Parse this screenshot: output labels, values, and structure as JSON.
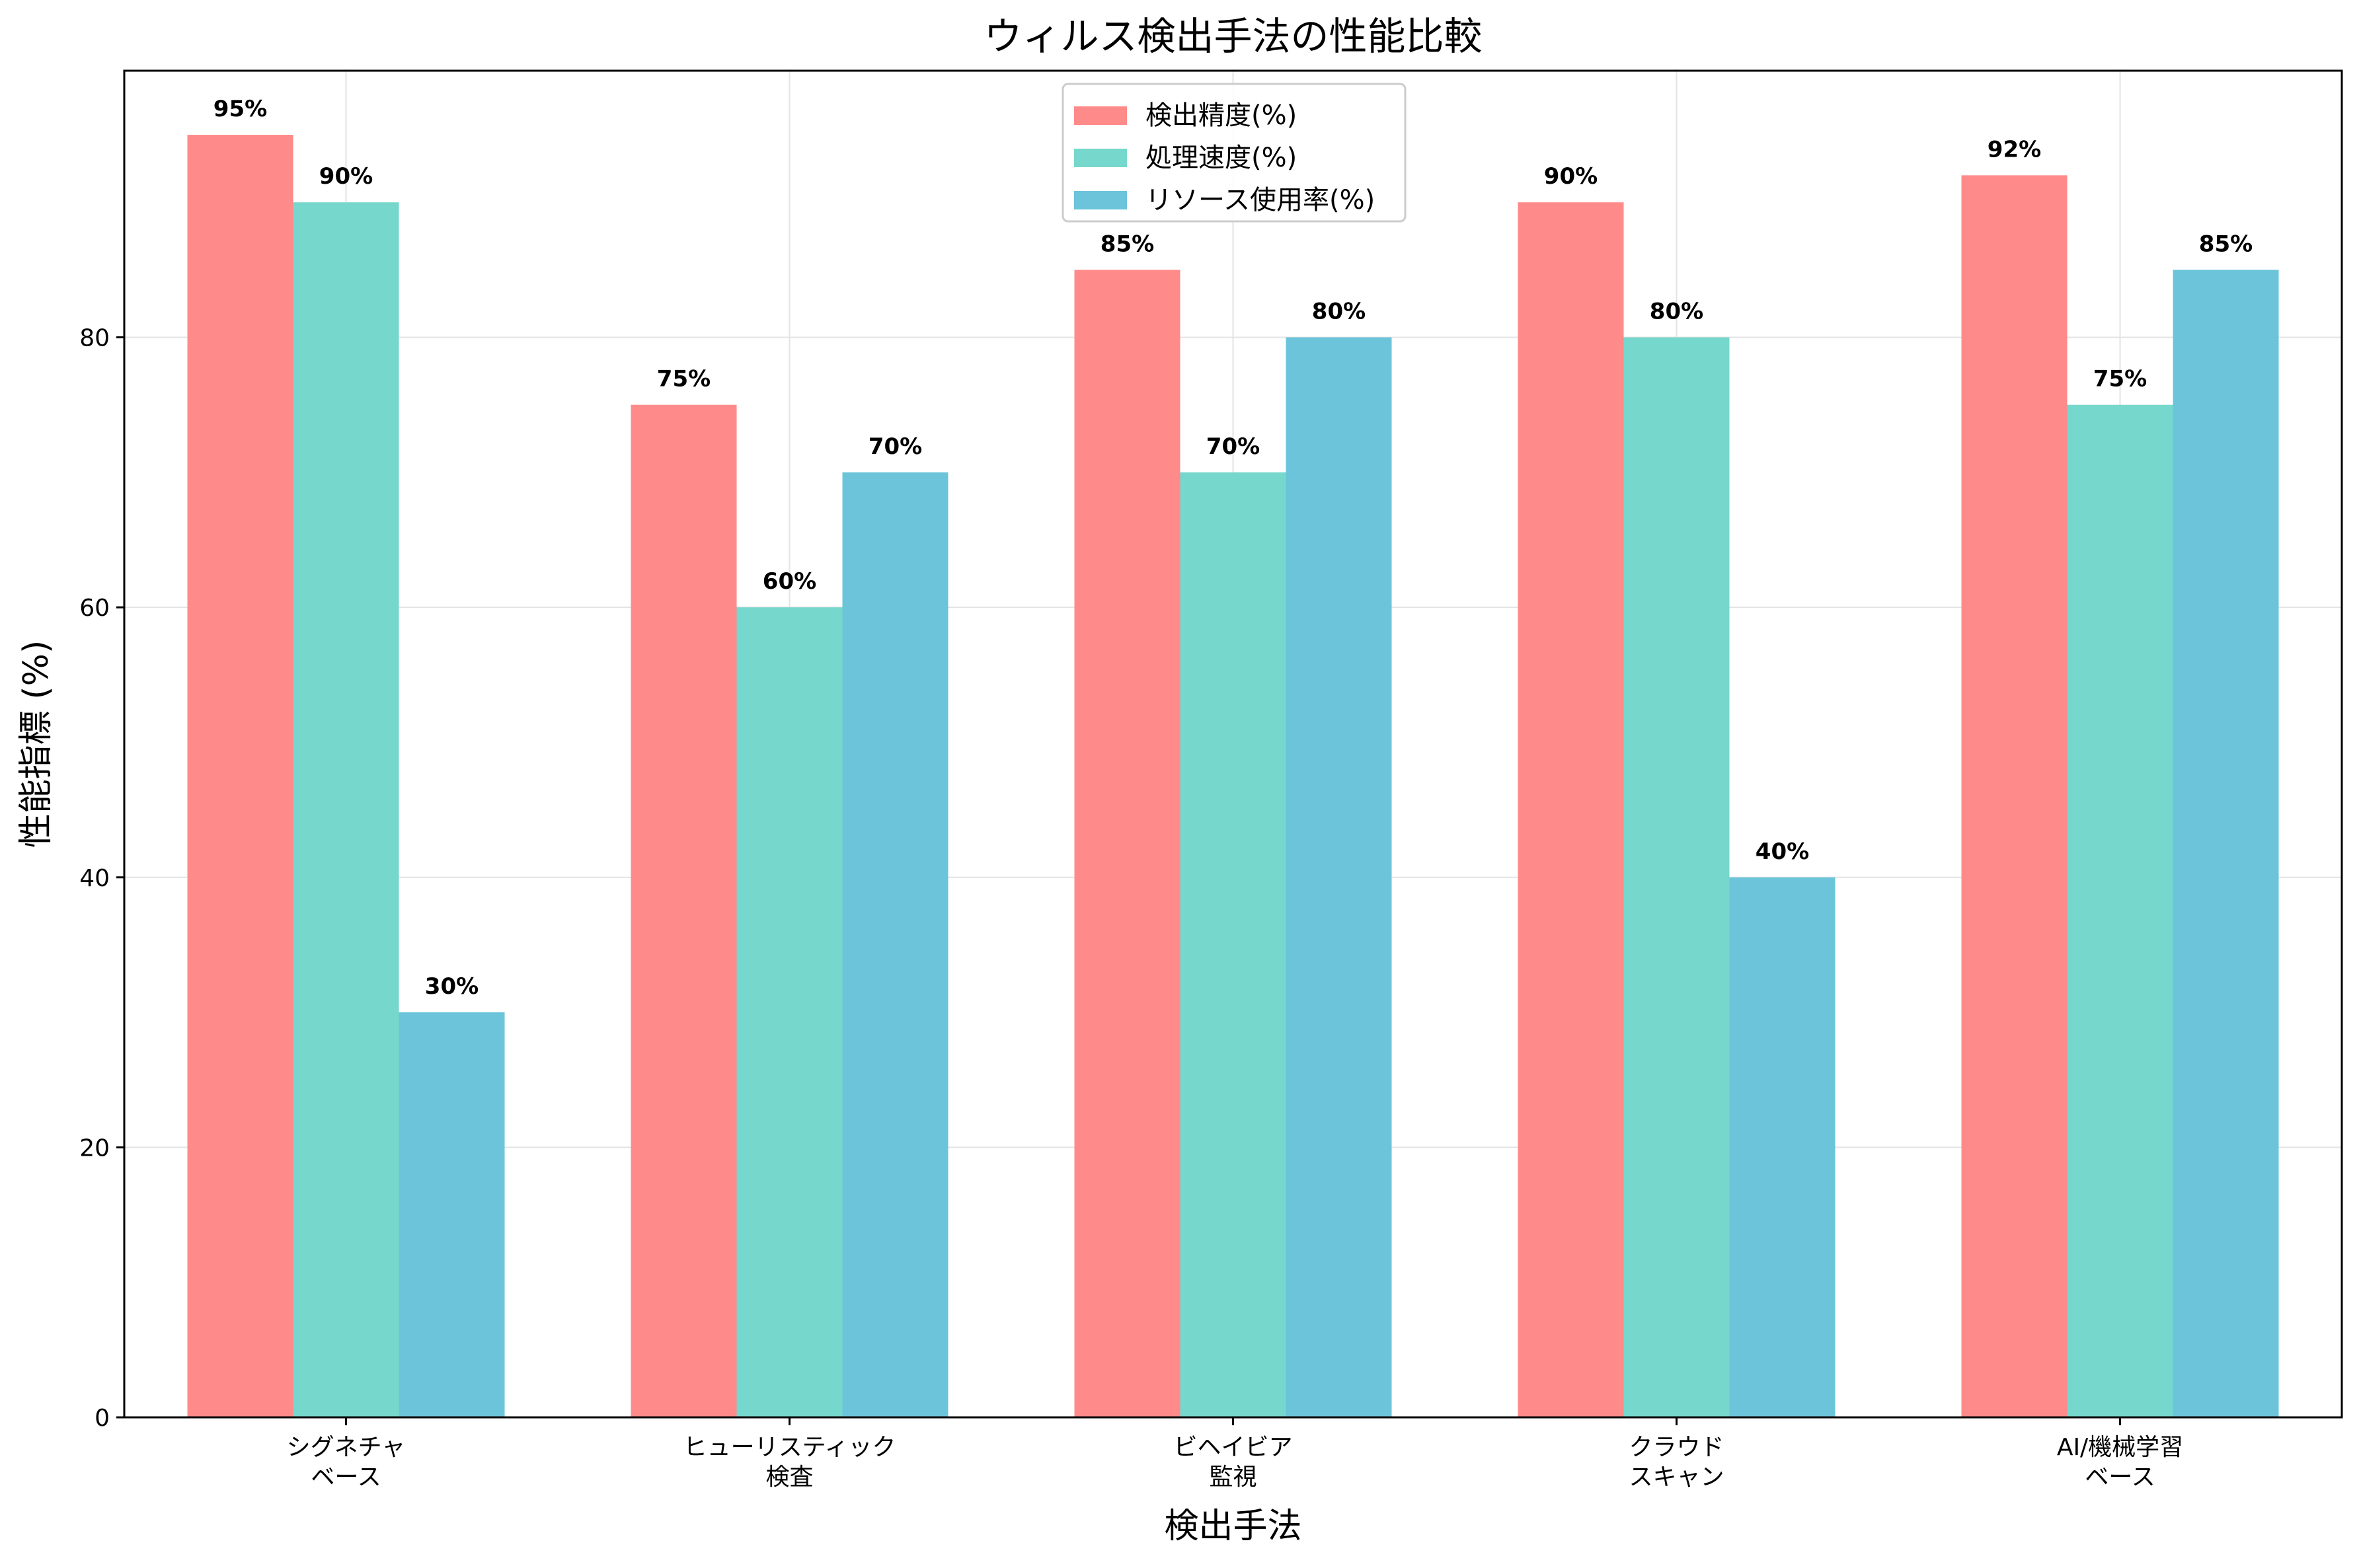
{
  "chart_data": {
    "type": "bar",
    "title": "ウィルス検出手法の性能比較",
    "xlabel": "検出手法",
    "ylabel": "性能指標 (%)",
    "categories": [
      [
        "シグネチャ",
        "ベース"
      ],
      [
        "ヒューリスティック",
        "検査"
      ],
      [
        "ビヘイビア",
        "監視"
      ],
      [
        "クラウド",
        "スキャン"
      ],
      [
        "AI/機械学習",
        "ベース"
      ]
    ],
    "series": [
      {
        "name": "検出精度(%)",
        "color": "#ff8a8a",
        "values": [
          95,
          75,
          85,
          90,
          92
        ],
        "labels": [
          "95%",
          "75%",
          "85%",
          "90%",
          "92%"
        ]
      },
      {
        "name": "処理速度(%)",
        "color": "#76d7cc",
        "values": [
          90,
          60,
          70,
          80,
          75
        ],
        "labels": [
          "90%",
          "60%",
          "70%",
          "80%",
          "75%"
        ]
      },
      {
        "name": "リソース使用率(%)",
        "color": "#6bc4d9",
        "values": [
          30,
          70,
          80,
          40,
          85
        ],
        "labels": [
          "30%",
          "70%",
          "80%",
          "40%",
          "85%"
        ]
      }
    ],
    "ylim": [
      0,
      99.75
    ],
    "yticks": [
      0,
      20,
      40,
      60,
      80
    ],
    "grid": true,
    "legend": "upper center"
  }
}
